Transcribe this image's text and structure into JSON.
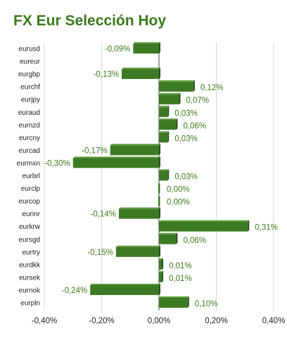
{
  "title": "FX Eur Selección Hoy",
  "colors": {
    "title": "#3a7a1c",
    "bar_front": "#3d7a24",
    "bar_top": "#5c9a3c",
    "bar_side": "#25501a",
    "grid": "#d8d8d8",
    "value_label": "#3a7a1c"
  },
  "chart_data": {
    "type": "bar",
    "orientation": "horizontal",
    "title": "FX Eur Selección Hoy",
    "categories": [
      "eurusd",
      "eureur",
      "eurgbp",
      "eurchf",
      "eurjpy",
      "euraud",
      "eurnzd",
      "eurcny",
      "eurcad",
      "eurmxn",
      "eurbrl",
      "eurclp",
      "eurcop",
      "eurinr",
      "eurkrw",
      "eursgd",
      "eurtry",
      "eurdkk",
      "eursek",
      "eurnok",
      "eurpln"
    ],
    "values": [
      -0.09,
      null,
      -0.13,
      0.12,
      0.07,
      0.03,
      0.06,
      0.03,
      -0.17,
      -0.3,
      0.03,
      0.0,
      0.0,
      -0.14,
      0.31,
      0.06,
      -0.15,
      0.01,
      0.01,
      -0.24,
      0.1
    ],
    "value_labels": [
      "-0,09%",
      "",
      "-0,13%",
      "0,12%",
      "0,07%",
      "0,03%",
      "0,06%",
      "0,03%",
      "-0,17%",
      "-0,30%",
      "0,03%",
      "0,00%",
      "0,00%",
      "-0,14%",
      "0,31%",
      "0,06%",
      "-0,15%",
      "0,01%",
      "0,01%",
      "-0,24%",
      "0,10%"
    ],
    "xlim": [
      -0.4,
      0.4
    ],
    "x_ticks": [
      -0.4,
      -0.2,
      0.0,
      0.2,
      0.4
    ],
    "x_tick_labels": [
      "-0,40%",
      "-0,20%",
      "0,00%",
      "0,20%",
      "0,40%"
    ],
    "xlabel": "",
    "ylabel": "",
    "grid": true,
    "legend": "none"
  }
}
